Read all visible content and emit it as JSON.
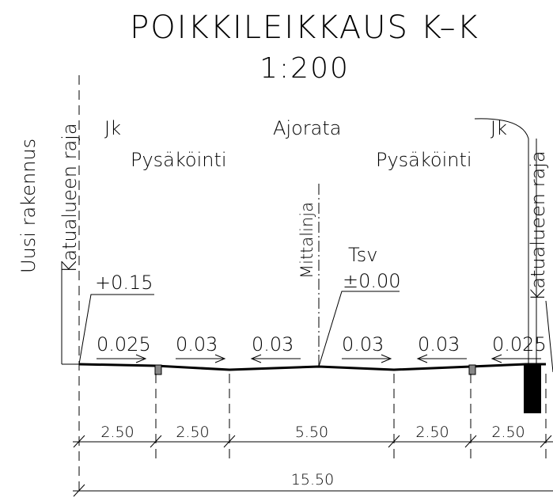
{
  "title": "POIKKILEIKKAUS K–K",
  "scale": "1:200",
  "labels": {
    "jk_left": "Jk",
    "ajorata": "Ajorata",
    "jk_right": "Jk",
    "parking_left": "Pysäköinti",
    "parking_right": "Pysäköinti",
    "new_building": "Uusi rakennus",
    "boundary_left": "Katualueen raja",
    "boundary_right": "Katualueen raja",
    "measure_line": "Mittalinja",
    "tsv": "Tsv",
    "level_center": "±0.00",
    "level_left": "+0.15"
  },
  "slopes": [
    "0.025",
    "0.03",
    "0.03",
    "0.03",
    "0.03",
    "0.025"
  ],
  "dimensions": [
    "2.50",
    "2.50",
    "5.50",
    "2.50",
    "2.50"
  ],
  "total_dimension": "15.50"
}
